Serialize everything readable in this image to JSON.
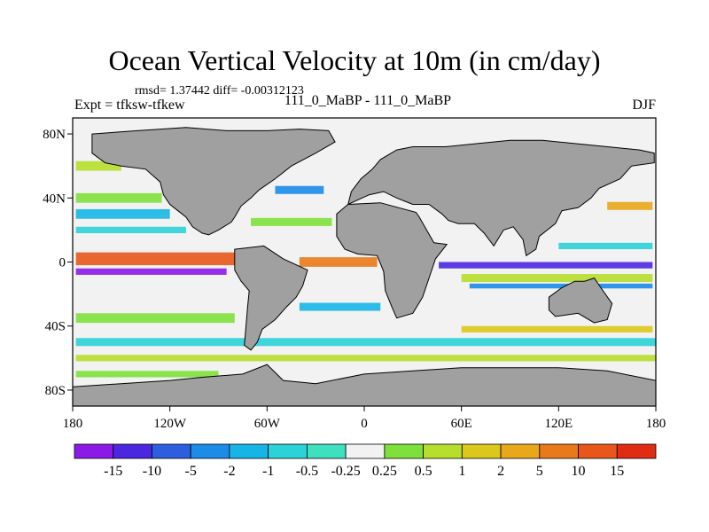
{
  "header": {
    "title": "Ocean Vertical Velocity at 10m (in cm/day)",
    "stats": "rmsd= 1.37442 diff= -0.00312123",
    "expt": "Expt = tfksw-tfkew",
    "center": "111_0_MaBP - 111_0_MaBP",
    "season": "DJF"
  },
  "chart_data": {
    "type": "heatmap",
    "title": "Ocean Vertical Velocity at 10m (in cm/day)",
    "xlim": [
      -180,
      180
    ],
    "ylim": [
      -90,
      90
    ],
    "x_ticks": [
      {
        "value": -180,
        "label": "180"
      },
      {
        "value": -120,
        "label": "120W"
      },
      {
        "value": -60,
        "label": "60W"
      },
      {
        "value": 0,
        "label": "0"
      },
      {
        "value": 60,
        "label": "60E"
      },
      {
        "value": 120,
        "label": "120E"
      },
      {
        "value": 180,
        "label": "180"
      }
    ],
    "y_ticks": [
      {
        "value": 80,
        "label": "80N"
      },
      {
        "value": 40,
        "label": "40N"
      },
      {
        "value": 0,
        "label": "0"
      },
      {
        "value": -40,
        "label": "40S"
      },
      {
        "value": -80,
        "label": "80S"
      }
    ],
    "colorbar": {
      "labels": [
        "-15",
        "-10",
        "-5",
        "-2",
        "-1",
        "-0.5",
        "-0.25",
        "0.25",
        "0.5",
        "1",
        "2",
        "5",
        "10",
        "15"
      ],
      "colors": [
        "#8b1ae8",
        "#4a28e0",
        "#2d5ee0",
        "#1c8ce8",
        "#17b5e6",
        "#2cd2d8",
        "#3fe0c0",
        "#f2f2f2",
        "#7ee03a",
        "#b6de2c",
        "#dcc81c",
        "#e8a81a",
        "#e87a1a",
        "#e8561a",
        "#e02c12"
      ]
    },
    "land_color": "#a0a0a0",
    "continents": [
      {
        "name": "North America",
        "points": [
          [
            -168,
            80
          ],
          [
            -140,
            82
          ],
          [
            -110,
            84
          ],
          [
            -85,
            82
          ],
          [
            -60,
            82
          ],
          [
            -40,
            83
          ],
          [
            -22,
            82
          ],
          [
            -18,
            75
          ],
          [
            -30,
            68
          ],
          [
            -45,
            60
          ],
          [
            -55,
            52
          ],
          [
            -65,
            45
          ],
          [
            -70,
            40
          ],
          [
            -76,
            35
          ],
          [
            -80,
            28
          ],
          [
            -82,
            25
          ],
          [
            -90,
            20
          ],
          [
            -96,
            17
          ],
          [
            -100,
            18
          ],
          [
            -106,
            22
          ],
          [
            -110,
            28
          ],
          [
            -115,
            32
          ],
          [
            -120,
            36
          ],
          [
            -124,
            42
          ],
          [
            -126,
            50
          ],
          [
            -135,
            58
          ],
          [
            -150,
            60
          ],
          [
            -160,
            62
          ],
          [
            -168,
            68
          ]
        ]
      },
      {
        "name": "South America",
        "points": [
          [
            -80,
            8
          ],
          [
            -62,
            10
          ],
          [
            -50,
            2
          ],
          [
            -35,
            -5
          ],
          [
            -38,
            -15
          ],
          [
            -42,
            -22
          ],
          [
            -48,
            -28
          ],
          [
            -55,
            -36
          ],
          [
            -63,
            -42
          ],
          [
            -66,
            -50
          ],
          [
            -70,
            -55
          ],
          [
            -74,
            -52
          ],
          [
            -73,
            -40
          ],
          [
            -72,
            -28
          ],
          [
            -71,
            -18
          ],
          [
            -76,
            -12
          ],
          [
            -80,
            -5
          ],
          [
            -80,
            2
          ]
        ]
      },
      {
        "name": "Eurasia",
        "points": [
          [
            -10,
            36
          ],
          [
            -8,
            44
          ],
          [
            -5,
            48
          ],
          [
            -2,
            52
          ],
          [
            5,
            58
          ],
          [
            10,
            64
          ],
          [
            20,
            70
          ],
          [
            30,
            72
          ],
          [
            50,
            72
          ],
          [
            70,
            74
          ],
          [
            90,
            76
          ],
          [
            110,
            76
          ],
          [
            130,
            74
          ],
          [
            150,
            72
          ],
          [
            170,
            70
          ],
          [
            179,
            68
          ],
          [
            179,
            62
          ],
          [
            165,
            60
          ],
          [
            158,
            52
          ],
          [
            145,
            46
          ],
          [
            140,
            40
          ],
          [
            132,
            34
          ],
          [
            122,
            32
          ],
          [
            118,
            24
          ],
          [
            108,
            16
          ],
          [
            106,
            8
          ],
          [
            100,
            4
          ],
          [
            98,
            14
          ],
          [
            92,
            22
          ],
          [
            86,
            20
          ],
          [
            80,
            10
          ],
          [
            74,
            18
          ],
          [
            68,
            24
          ],
          [
            58,
            24
          ],
          [
            52,
            26
          ],
          [
            48,
            30
          ],
          [
            40,
            36
          ],
          [
            30,
            36
          ],
          [
            25,
            38
          ],
          [
            20,
            40
          ],
          [
            12,
            44
          ],
          [
            3,
            42
          ]
        ]
      },
      {
        "name": "Africa",
        "points": [
          [
            -17,
            30
          ],
          [
            -10,
            36
          ],
          [
            10,
            37
          ],
          [
            32,
            31
          ],
          [
            34,
            28
          ],
          [
            43,
            12
          ],
          [
            51,
            11
          ],
          [
            44,
            2
          ],
          [
            40,
            -10
          ],
          [
            36,
            -22
          ],
          [
            30,
            -32
          ],
          [
            20,
            -35
          ],
          [
            17,
            -28
          ],
          [
            13,
            -18
          ],
          [
            12,
            -6
          ],
          [
            8,
            4
          ],
          [
            -4,
            5
          ],
          [
            -12,
            8
          ],
          [
            -17,
            16
          ]
        ]
      },
      {
        "name": "Australia",
        "points": [
          [
            114,
            -22
          ],
          [
            122,
            -16
          ],
          [
            130,
            -12
          ],
          [
            136,
            -12
          ],
          [
            142,
            -10
          ],
          [
            146,
            -16
          ],
          [
            153,
            -26
          ],
          [
            150,
            -36
          ],
          [
            142,
            -38
          ],
          [
            132,
            -32
          ],
          [
            118,
            -34
          ],
          [
            114,
            -30
          ]
        ]
      },
      {
        "name": "Antarctica",
        "points": [
          [
            -180,
            -78
          ],
          [
            -150,
            -76
          ],
          [
            -120,
            -74
          ],
          [
            -100,
            -72
          ],
          [
            -75,
            -70
          ],
          [
            -60,
            -64
          ],
          [
            -50,
            -74
          ],
          [
            -30,
            -76
          ],
          [
            0,
            -70
          ],
          [
            30,
            -68
          ],
          [
            60,
            -66
          ],
          [
            90,
            -66
          ],
          [
            120,
            -66
          ],
          [
            150,
            -68
          ],
          [
            180,
            -74
          ],
          [
            180,
            -90
          ],
          [
            -180,
            -90
          ]
        ]
      }
    ],
    "anomaly_bands": [
      {
        "lat": 2,
        "lon_start": -178,
        "lon_end": -80,
        "height_deg": 8,
        "value": 15
      },
      {
        "lat": -6,
        "lon_start": -178,
        "lon_end": -85,
        "height_deg": 4,
        "value": -15
      },
      {
        "lat": 0,
        "lon_start": -40,
        "lon_end": 8,
        "height_deg": 6,
        "value": 10
      },
      {
        "lat": -2,
        "lon_start": 46,
        "lon_end": 178,
        "height_deg": 4,
        "value": -10
      },
      {
        "lat": -10,
        "lon_start": 60,
        "lon_end": 178,
        "height_deg": 5,
        "value": 1
      },
      {
        "lat": -15,
        "lon_start": 65,
        "lon_end": 178,
        "height_deg": 3,
        "value": -2
      },
      {
        "lat": 30,
        "lon_start": -178,
        "lon_end": -120,
        "height_deg": 6,
        "value": -1
      },
      {
        "lat": 40,
        "lon_start": -178,
        "lon_end": -125,
        "height_deg": 6,
        "value": 0.5
      },
      {
        "lat": 20,
        "lon_start": -178,
        "lon_end": -110,
        "height_deg": 4,
        "value": -0.5
      },
      {
        "lat": 60,
        "lon_start": -178,
        "lon_end": -150,
        "height_deg": 6,
        "value": 1
      },
      {
        "lat": -35,
        "lon_start": -178,
        "lon_end": -80,
        "height_deg": 6,
        "value": 0.5
      },
      {
        "lat": -50,
        "lon_start": -178,
        "lon_end": 180,
        "height_deg": 5,
        "value": -0.5
      },
      {
        "lat": -60,
        "lon_start": -178,
        "lon_end": 180,
        "height_deg": 4,
        "value": 1
      },
      {
        "lat": -42,
        "lon_start": 60,
        "lon_end": 178,
        "height_deg": 4,
        "value": 2
      },
      {
        "lat": -28,
        "lon_start": -40,
        "lon_end": 10,
        "height_deg": 5,
        "value": -1
      },
      {
        "lat": 25,
        "lon_start": -70,
        "lon_end": -20,
        "height_deg": 5,
        "value": 0.5
      },
      {
        "lat": 45,
        "lon_start": -55,
        "lon_end": -25,
        "height_deg": 5,
        "value": -2
      },
      {
        "lat": 35,
        "lon_start": 150,
        "lon_end": 178,
        "height_deg": 5,
        "value": 5
      },
      {
        "lat": 10,
        "lon_start": 120,
        "lon_end": 178,
        "height_deg": 4,
        "value": -0.5
      },
      {
        "lat": -70,
        "lon_start": -178,
        "lon_end": -90,
        "height_deg": 4,
        "value": 0.5
      }
    ]
  }
}
